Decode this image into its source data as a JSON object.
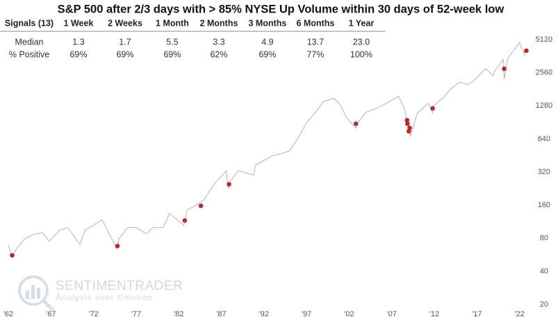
{
  "chart_data": {
    "type": "line",
    "title": "S&P 500 after 2/3 days with > 85% NYSE Up Volume within 30 days of 52-week low",
    "log_y": true,
    "xlim": [
      1962,
      2023
    ],
    "xticks": [
      {
        "value": 1962,
        "label": "'62"
      },
      {
        "value": 1967,
        "label": "'67"
      },
      {
        "value": 1972,
        "label": "'72"
      },
      {
        "value": 1977,
        "label": "'77"
      },
      {
        "value": 1982,
        "label": "'82"
      },
      {
        "value": 1987,
        "label": "'87"
      },
      {
        "value": 1992,
        "label": "'92"
      },
      {
        "value": 1997,
        "label": "'97"
      },
      {
        "value": 2002,
        "label": "'02"
      },
      {
        "value": 2007,
        "label": "'07"
      },
      {
        "value": 2012,
        "label": "'12"
      },
      {
        "value": 2017,
        "label": "'17"
      },
      {
        "value": 2022,
        "label": "'22"
      }
    ],
    "ylim": [
      20,
      5120
    ],
    "yticks": [
      20,
      40,
      80,
      160,
      320,
      640,
      1280,
      2560,
      5120
    ],
    "line": {
      "color": "#b4b4b4",
      "x": [
        1962.0,
        1962.4,
        1963,
        1964,
        1965,
        1966,
        1966.8,
        1968,
        1969,
        1970.4,
        1971,
        1972,
        1973,
        1974.7,
        1975,
        1976,
        1977,
        1978.2,
        1979,
        1980.2,
        1980.9,
        1982.6,
        1983,
        1984,
        1985,
        1986,
        1987.6,
        1987.8,
        1988,
        1989,
        1990.8,
        1991,
        1993,
        1994,
        1995,
        1996,
        1997,
        1998,
        1999,
        2000.2,
        2001,
        2001.7,
        2002.8,
        2003,
        2004,
        2005,
        2006,
        2007.8,
        2008.5,
        2009.2,
        2010,
        2011.3,
        2011.8,
        2012,
        2013,
        2014,
        2015,
        2016,
        2017,
        2018,
        2018.9,
        2019,
        2020.1,
        2020.2,
        2020.6,
        2021,
        2022,
        2022.7
      ],
      "values": [
        70,
        55,
        65,
        80,
        87,
        90,
        75,
        95,
        100,
        70,
        95,
        105,
        118,
        65,
        80,
        100,
        100,
        88,
        100,
        100,
        135,
        105,
        145,
        160,
        180,
        240,
        330,
        225,
        260,
        330,
        300,
        370,
        450,
        470,
        500,
        650,
        900,
        1100,
        1400,
        1500,
        1300,
        1000,
        800,
        900,
        1120,
        1200,
        1300,
        1560,
        1200,
        680,
        1100,
        1350,
        1100,
        1300,
        1500,
        1850,
        2100,
        2000,
        2300,
        2800,
        2400,
        2600,
        3380,
        2240,
        3400,
        3800,
        4800,
        3600
      ]
    },
    "signals": {
      "color": "#b52a2a",
      "x": [
        1962.45,
        1974.8,
        1982.7,
        1984.6,
        1987.9,
        2002.8,
        2008.8,
        2008.85,
        2009.0,
        2009.1,
        2011.8,
        2020.2,
        2022.8
      ],
      "values": [
        56,
        68,
        116,
        158,
        248,
        880,
        948,
        880,
        752,
        806,
        1216,
        2780,
        4060
      ]
    }
  },
  "table": {
    "columns": [
      "Signals (13)",
      "1 Week",
      "2 Weeks",
      "1 Month",
      "2 Months",
      "3 Months",
      "6 Months",
      "1 Year"
    ],
    "rows": [
      [
        "Median",
        "1.3",
        "1.7",
        "5.5",
        "3.3",
        "4.9",
        "13.7",
        "23.0"
      ],
      [
        "% Positive",
        "69%",
        "69%",
        "69%",
        "62%",
        "69%",
        "77%",
        "100%"
      ]
    ]
  },
  "watermark": {
    "title": "SENTIMENTRADER",
    "subtitle": "Analysis over Emotion"
  }
}
